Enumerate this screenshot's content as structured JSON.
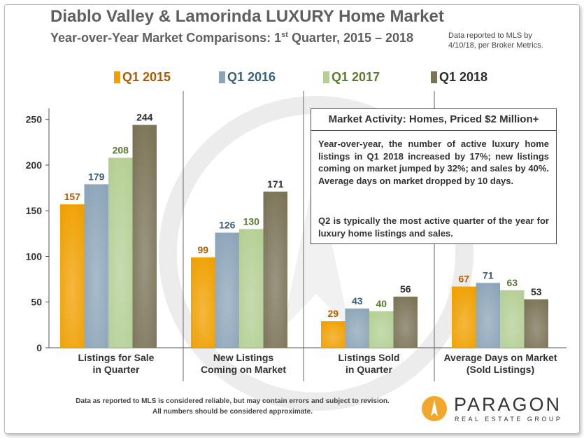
{
  "header": {
    "title": "Diablo Valley & Lamorinda LUXURY Home Market",
    "subtitle_pre": "Year-over-Year Market Comparisons: 1",
    "subtitle_sup": "st",
    "subtitle_post": " Quarter, 2015 – 2018",
    "note_line1": "Data reported to MLS by",
    "note_line2": "4/10/18, per Broker Metrics."
  },
  "colors": {
    "q1_2015": "#f0a000",
    "q1_2016": "#8ca5b8",
    "q1_2017": "#b4cf94",
    "q1_2018": "#7a7357",
    "axis": "#555555"
  },
  "chart_data": {
    "type": "bar",
    "categories": [
      "Listings for Sale in Quarter",
      "New Listings Coming on Market",
      "Listings Sold in Quarter",
      "Average Days on Market (Sold Listings)"
    ],
    "category_labels": [
      [
        "Listings for Sale",
        "in Quarter"
      ],
      [
        "New Listings",
        "Coming on Market"
      ],
      [
        "Listings Sold",
        "in Quarter"
      ],
      [
        "Average Days on Market",
        "(Sold Listings)"
      ]
    ],
    "series": [
      {
        "name": "Q1 2015",
        "values": [
          157,
          99,
          29,
          67
        ]
      },
      {
        "name": "Q1 2016",
        "values": [
          179,
          126,
          43,
          71
        ]
      },
      {
        "name": "Q1 2017",
        "values": [
          208,
          130,
          40,
          63
        ]
      },
      {
        "name": "Q1 2018",
        "values": [
          244,
          171,
          56,
          53
        ]
      }
    ],
    "label_colors": [
      "#b05a00",
      "#3a5f7a",
      "#5a7a30",
      "#2b2b2b"
    ],
    "yticks": [
      0,
      50,
      100,
      150,
      200,
      250
    ],
    "ylim": [
      0,
      262
    ],
    "legend": "top"
  },
  "infobox": {
    "title": "Market Activity: Homes, Priced $2 Million+",
    "p1": "Year-over-year, the number of active luxury home listings in Q1 2018 increased by 17%; new listings coming on market jumped by 32%; and sales by 40%. Average days on market dropped by 10 days.",
    "p2": "Q2 is typically the most active quarter of the year for luxury home listings and sales."
  },
  "footer": {
    "line1": "Data as reported  to MLS is considered reliable, but may contain errors and subject to revision.",
    "line2": "All numbers should be considered approximate."
  },
  "logo": {
    "name": "PARAGON",
    "sub": "REAL ESTATE GROUP"
  }
}
